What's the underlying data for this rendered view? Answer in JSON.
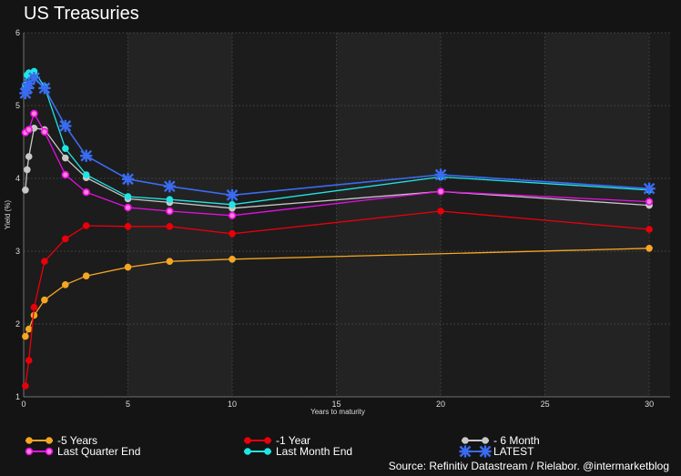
{
  "chart_data": {
    "type": "line",
    "title": "US Treasuries",
    "xlabel": "Years to maturity",
    "ylabel": "Yield (%)",
    "xlim": [
      0,
      31
    ],
    "ylim": [
      1,
      6
    ],
    "x_ticks": [
      0,
      5,
      10,
      15,
      20,
      25,
      30
    ],
    "y_ticks": [
      1,
      2,
      3,
      4,
      5,
      6
    ],
    "grid": true,
    "legend_position": "bottom",
    "source": "Source: Refinitiv Datastream /  Rielabor. @intermarketblog",
    "series": [
      {
        "name": "-5 Years",
        "color": "#f5a623",
        "marker": "circle",
        "x": [
          0.083,
          0.25,
          0.5,
          1,
          2,
          3,
          5,
          7,
          10,
          30
        ],
        "y": [
          1.83,
          1.93,
          2.12,
          2.33,
          2.54,
          2.66,
          2.78,
          2.86,
          2.89,
          3.04
        ]
      },
      {
        "name": "-1 Year",
        "color": "#e8000b",
        "marker": "circle",
        "x": [
          0.083,
          0.25,
          0.5,
          1,
          2,
          3,
          5,
          7,
          10,
          20,
          30
        ],
        "y": [
          1.15,
          1.5,
          2.23,
          2.86,
          3.17,
          3.35,
          3.34,
          3.34,
          3.24,
          3.55,
          3.3
        ]
      },
      {
        "name": "- 6 Month",
        "color": "#c8c8c8",
        "marker": "circle",
        "x": [
          0.083,
          0.167,
          0.25,
          0.5,
          1,
          2,
          3,
          5,
          7,
          10,
          20,
          30
        ],
        "y": [
          3.84,
          4.12,
          4.3,
          4.69,
          4.67,
          4.28,
          4.01,
          3.72,
          3.67,
          3.59,
          3.82,
          3.63
        ]
      },
      {
        "name": "Last Quarter End",
        "color": "#e60fe6",
        "marker": "circle",
        "x": [
          0.083,
          0.25,
          0.5,
          1,
          2,
          3,
          5,
          7,
          10,
          20,
          30
        ],
        "y": [
          4.63,
          4.67,
          4.89,
          4.64,
          4.05,
          3.81,
          3.6,
          3.55,
          3.49,
          3.82,
          3.68
        ]
      },
      {
        "name": "Last Month End",
        "color": "#20e5e5",
        "marker": "circle",
        "x": [
          0.083,
          0.167,
          0.25,
          0.5,
          1,
          2,
          3,
          5,
          7,
          10,
          20,
          30
        ],
        "y": [
          5.28,
          5.42,
          5.45,
          5.47,
          5.26,
          4.41,
          4.05,
          3.75,
          3.71,
          3.64,
          4.02,
          3.84
        ]
      },
      {
        "name": "LATEST",
        "color": "#3a6cf2",
        "marker": "star",
        "x": [
          0.083,
          0.167,
          0.25,
          0.5,
          1,
          2,
          3,
          5,
          7,
          10,
          20,
          30
        ],
        "y": [
          5.17,
          5.24,
          5.3,
          5.38,
          5.24,
          4.72,
          4.31,
          3.99,
          3.89,
          3.77,
          4.05,
          3.86
        ]
      }
    ]
  }
}
